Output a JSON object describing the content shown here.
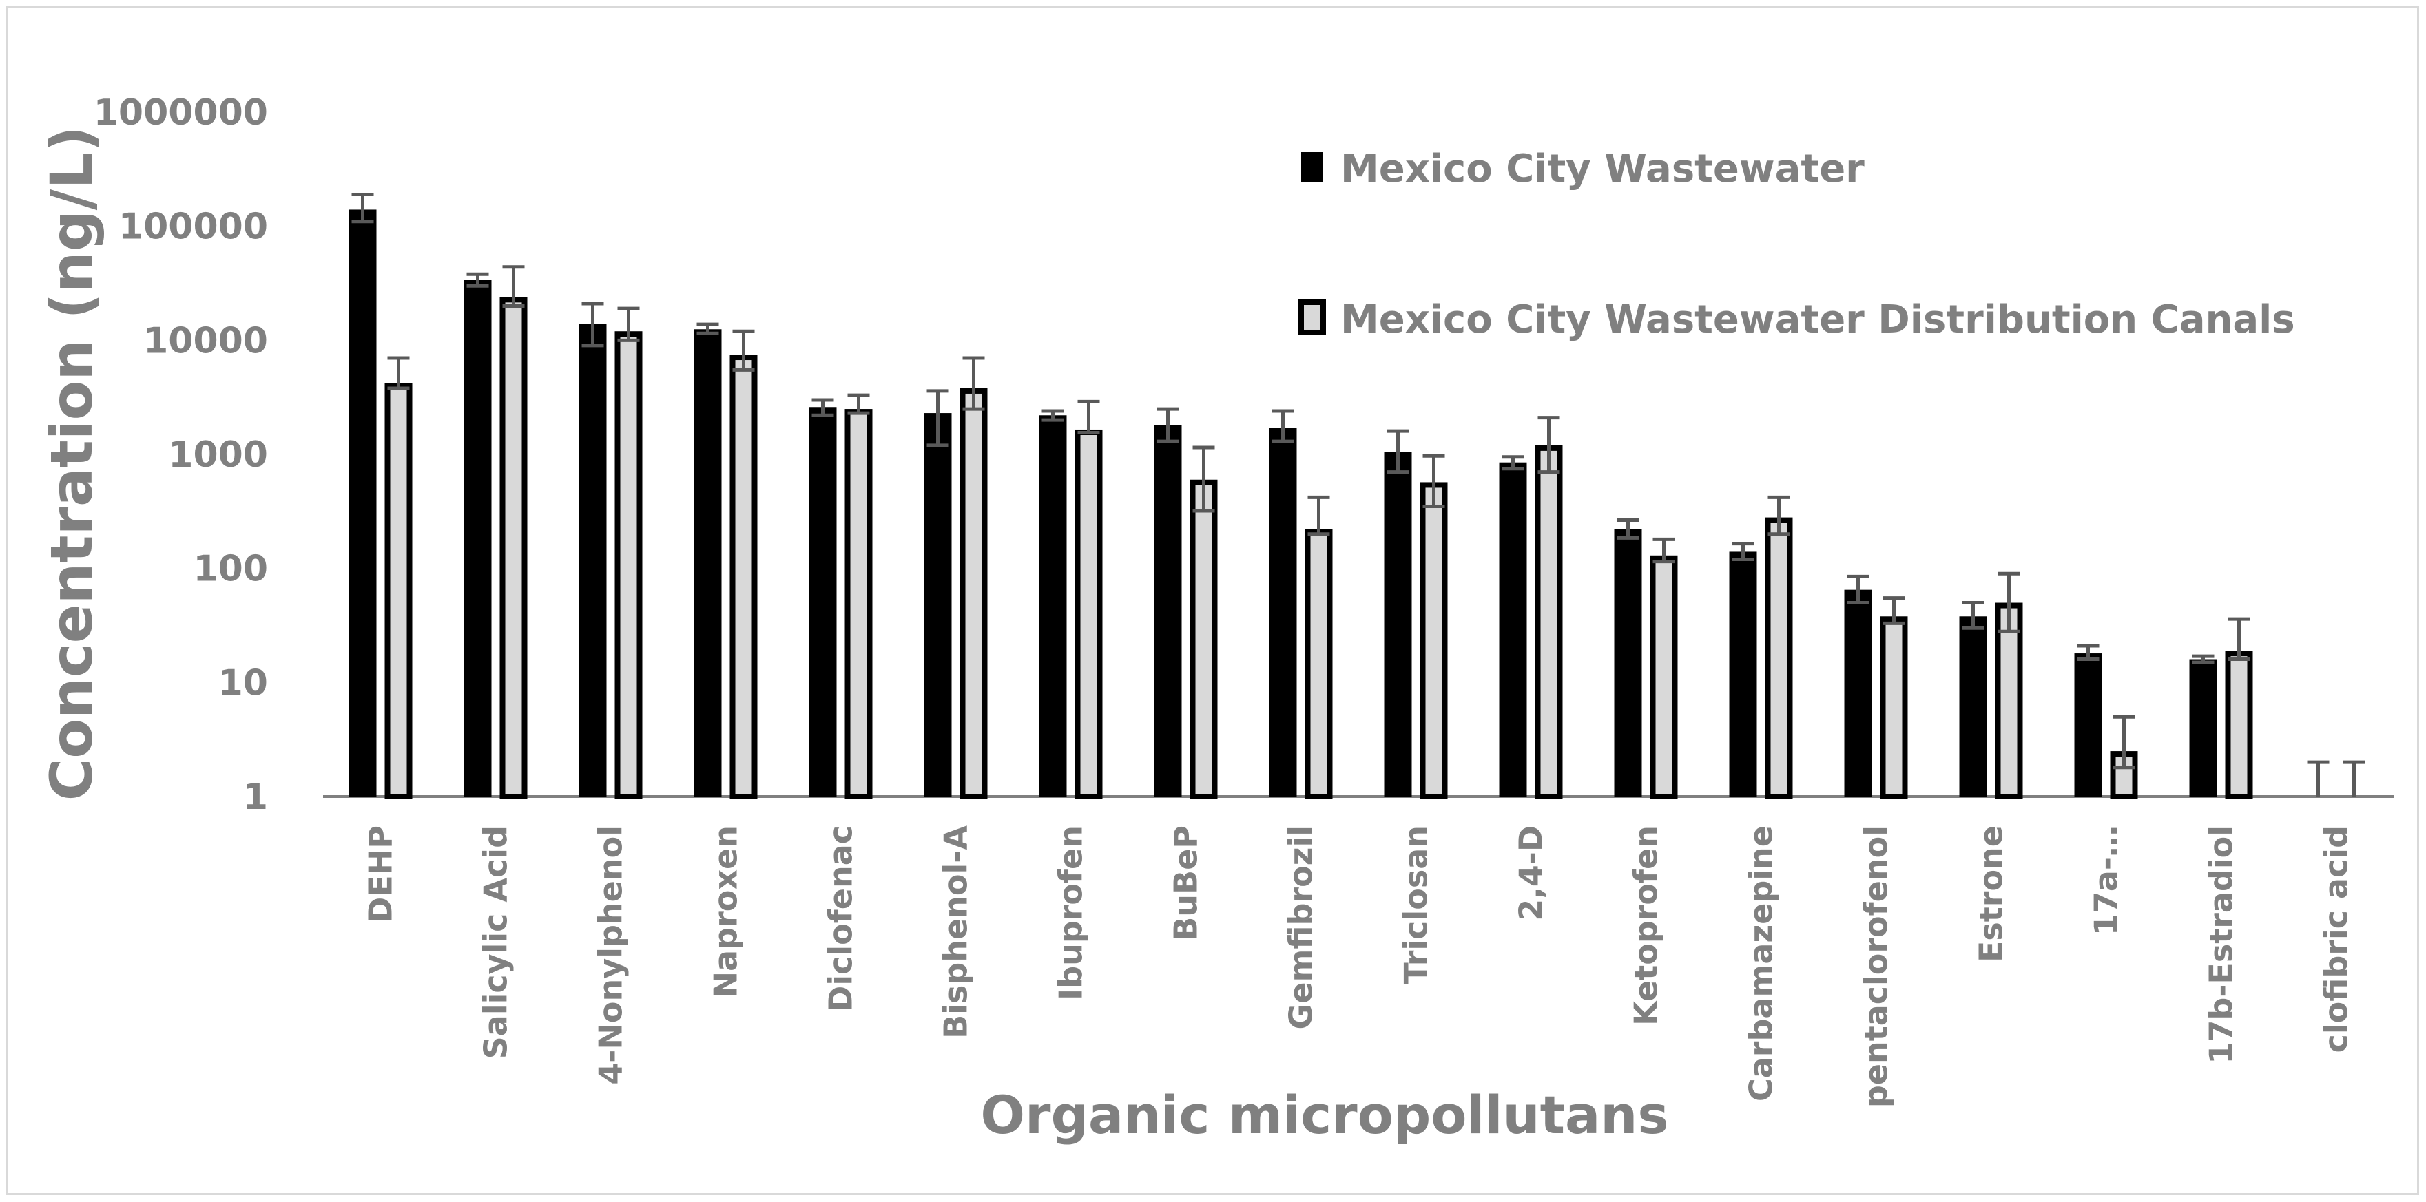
{
  "chart_data": {
    "type": "bar",
    "title": "",
    "xlabel": "Organic micropollutans",
    "ylabel": "Concentration (ng/L)",
    "yscale": "log",
    "ylim": [
      1,
      1000000
    ],
    "yticks": [
      "1",
      "10",
      "100",
      "1000",
      "10000",
      "100000",
      "1000000"
    ],
    "legend_position": "top-right",
    "colors": {
      "series1": "#000000",
      "series2": "#d9d9d9",
      "outline": "#000000",
      "error": "#595959",
      "axis": "#808080"
    },
    "categories": [
      "DEHP",
      "Salicylic Acid",
      "4-Nonylphenol",
      "Naproxen",
      "Diclofenac",
      "Bisphenol-A",
      "Ibuprofen",
      "BuBeP",
      "Gemfibrozil",
      "Triclosan",
      "2,4-D",
      "Ketoprofen",
      "Carbamazepine",
      "pentaclorofenol",
      "Estrone",
      "17a-…",
      "17b-Estradiol",
      "clofibric acid"
    ],
    "series": [
      {
        "name": "Mexico City Wastewater",
        "values": [
          140000,
          34000,
          14000,
          12500,
          2600,
          2300,
          2200,
          1800,
          1700,
          1050,
          850,
          220,
          140,
          65,
          38,
          18,
          16,
          1
        ],
        "err_low": [
          110000,
          30000,
          9000,
          11500,
          2200,
          1200,
          2000,
          1300,
          1300,
          700,
          750,
          185,
          120,
          50,
          30,
          16,
          15,
          null
        ],
        "err_high": [
          190000,
          38000,
          21000,
          13800,
          3000,
          3600,
          2400,
          2500,
          2400,
          1600,
          950,
          265,
          165,
          85,
          50,
          21,
          17,
          2
        ]
      },
      {
        "name": "Mexico City Wastewater Distribution Canals",
        "values": [
          4200,
          24000,
          12000,
          7500,
          2500,
          3800,
          1650,
          600,
          220,
          570,
          1200,
          130,
          280,
          38,
          50,
          2.5,
          19,
          1
        ],
        "err_low": [
          3800,
          20000,
          10000,
          5500,
          2300,
          2500,
          1550,
          320,
          200,
          350,
          700,
          115,
          200,
          33,
          28,
          1.8,
          16,
          null
        ],
        "err_high": [
          7000,
          44000,
          19000,
          12000,
          3300,
          7000,
          2900,
          1150,
          420,
          970,
          2100,
          180,
          420,
          55,
          90,
          5,
          36,
          2
        ]
      }
    ]
  }
}
